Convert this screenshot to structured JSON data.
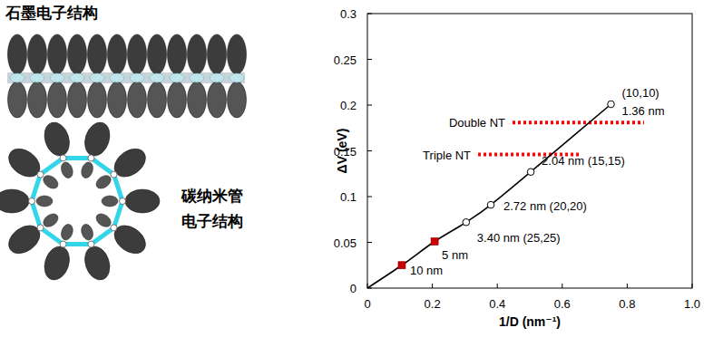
{
  "diagram": {
    "graphite_label": "石墨电子结构",
    "nanotube_label": [
      "碳纳米管",
      "电子结构"
    ]
  },
  "chart_data": {
    "type": "line",
    "x_label": "1/D (nm⁻¹)",
    "y_label": "ΔV (eV)",
    "xlim": [
      0,
      1
    ],
    "xticks": [
      0,
      0.2,
      0.4,
      0.6,
      0.8,
      {
        "value": 1,
        "label": "1.0"
      }
    ],
    "ylim": [
      0,
      0.3
    ],
    "yticks": [
      0,
      0.05,
      0.1,
      0.15,
      0.2,
      0.25,
      0.3
    ],
    "grid": false,
    "series": [
      {
        "type": "line",
        "color": "#000000",
        "line_style": "solid",
        "marker": "none",
        "x": [
          0,
          0.106,
          0.207,
          0.304,
          0.38,
          0.503,
          0.75
        ],
        "values": [
          0,
          0.025,
          0.051,
          0.072,
          0.091,
          0.127,
          0.201
        ]
      },
      {
        "type": "scatter",
        "color": "#000000",
        "marker": "open_circle",
        "x": [
          0.75,
          0.503,
          0.38,
          0.304
        ],
        "values": [
          0.201,
          0.127,
          0.091,
          0.072
        ],
        "labels": [
          [
            "(10,10)",
            "1.36 nm"
          ],
          [
            "2.04 nm (15,15)"
          ],
          [
            "2.72 nm (20,20)"
          ],
          [
            "3.40 nm (25,25)"
          ]
        ]
      },
      {
        "type": "scatter",
        "color": "#cc0000",
        "marker": "square",
        "x": [
          0.207,
          0.106
        ],
        "values": [
          0.051,
          0.025
        ],
        "labels": [
          [
            "5 nm"
          ],
          [
            "10 nm"
          ]
        ]
      }
    ],
    "reference_lines": [
      {
        "label": "Double NT",
        "value": 0.181,
        "xmin": 0.447,
        "xmax": 0.852,
        "color": "#ff0000",
        "line_style": "dotted"
      },
      {
        "label": "Triple NT",
        "value": 0.146,
        "xmin": 0.341,
        "xmax": 0.656,
        "color": "#ff0000",
        "line_style": "dotted"
      }
    ]
  }
}
